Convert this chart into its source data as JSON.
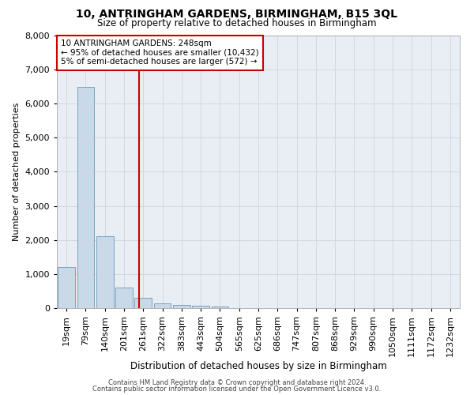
{
  "title": "10, ANTRINGHAM GARDENS, BIRMINGHAM, B15 3QL",
  "subtitle": "Size of property relative to detached houses in Birmingham",
  "xlabel": "Distribution of detached houses by size in Birmingham",
  "ylabel": "Number of detached properties",
  "footer_line1": "Contains HM Land Registry data © Crown copyright and database right 2024.",
  "footer_line2": "Contains public sector information licensed under the Open Government Licence v3.0.",
  "annotation_line1": "10 ANTRINGHAM GARDENS: 248sqm",
  "annotation_line2": "← 95% of detached houses are smaller (10,432)",
  "annotation_line3": "5% of semi-detached houses are larger (572) →",
  "bar_color": "#c9d9e8",
  "bar_edge_color": "#6699bb",
  "vline_color": "#cc0000",
  "grid_color": "#ccd6e0",
  "background_color": "#e8eef4",
  "categories": [
    "19sqm",
    "79sqm",
    "140sqm",
    "201sqm",
    "261sqm",
    "322sqm",
    "383sqm",
    "443sqm",
    "504sqm",
    "565sqm",
    "625sqm",
    "686sqm",
    "747sqm",
    "807sqm",
    "868sqm",
    "929sqm",
    "990sqm",
    "1050sqm",
    "1111sqm",
    "1172sqm",
    "1232sqm"
  ],
  "values": [
    1200,
    6500,
    2100,
    600,
    300,
    150,
    100,
    70,
    50,
    0,
    0,
    0,
    0,
    0,
    0,
    0,
    0,
    0,
    0,
    0,
    0
  ],
  "ylim": [
    0,
    8000
  ],
  "yticks": [
    0,
    1000,
    2000,
    3000,
    4000,
    5000,
    6000,
    7000,
    8000
  ],
  "vline_x_index": 3.78
}
